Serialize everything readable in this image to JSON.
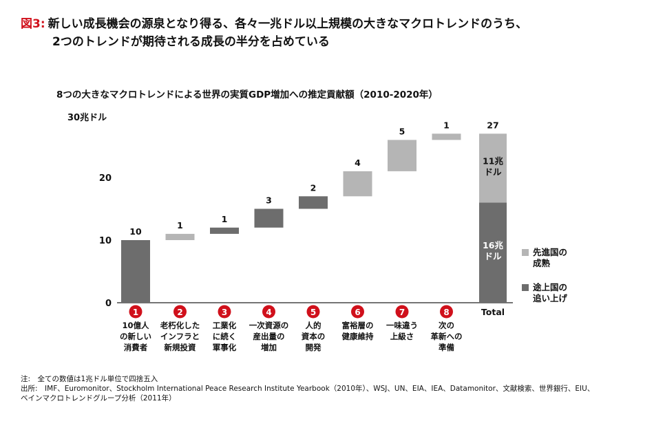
{
  "figure": {
    "number": "図3:",
    "title_line1": "新しい成長機会の源泉となり得る、各々一兆ドル以上規模の大きなマクロトレンドのうち、",
    "title_line2": "2つのトレンドが期待される成長の半分を占めている"
  },
  "colors": {
    "accent": "#d0101b",
    "dark_bar": "#6d6d6d",
    "light_bar": "#b5b5b5"
  },
  "chart_data": {
    "type": "bar",
    "subtype": "waterfall",
    "title": "8つの大きなマクロトレンドによる世界の実質GDP増加への推定貢献額（2010-2020年）",
    "unit_label": "30兆ドル",
    "ylim": [
      0,
      30
    ],
    "yticks": [
      "0",
      "10",
      "20"
    ],
    "categories": [
      {
        "num": "1",
        "lines": [
          "10億人",
          "の新しい",
          "消費者"
        ]
      },
      {
        "num": "2",
        "lines": [
          "老朽化した",
          "インフラと",
          "新規投資"
        ]
      },
      {
        "num": "3",
        "lines": [
          "工業化",
          "に続く",
          "軍事化"
        ]
      },
      {
        "num": "4",
        "lines": [
          "一次資源の",
          "産出量の",
          "増加"
        ]
      },
      {
        "num": "5",
        "lines": [
          "人的",
          "資本の",
          "開発"
        ]
      },
      {
        "num": "6",
        "lines": [
          "富裕層の",
          "健康維持"
        ]
      },
      {
        "num": "7",
        "lines": [
          "一味違う",
          "上級さ"
        ]
      },
      {
        "num": "8",
        "lines": [
          "次の",
          "革新への",
          "準備"
        ]
      }
    ],
    "series": [
      {
        "start": 0,
        "end": 10,
        "label": "10",
        "tone": "dark"
      },
      {
        "start": 10,
        "end": 11,
        "label": "1",
        "tone": "light"
      },
      {
        "start": 11,
        "end": 12,
        "label": "1",
        "tone": "dark"
      },
      {
        "start": 12,
        "end": 15,
        "label": "3",
        "tone": "dark"
      },
      {
        "start": 15,
        "end": 17,
        "label": "2",
        "tone": "dark"
      },
      {
        "start": 17,
        "end": 21,
        "label": "4",
        "tone": "light"
      },
      {
        "start": 21,
        "end": 26,
        "label": "5",
        "tone": "light"
      },
      {
        "start": 26,
        "end": 27,
        "label": "1",
        "tone": "light"
      }
    ],
    "total": {
      "category": "Total",
      "label": "27",
      "segments": [
        {
          "name": "途上国の追い上げ",
          "value": 16,
          "label": [
            "16兆",
            "ドル"
          ],
          "tone": "dark"
        },
        {
          "name": "先進国の成熟",
          "value": 11,
          "label": [
            "11兆",
            "ドル"
          ],
          "tone": "light"
        }
      ]
    },
    "legend": [
      {
        "label": [
          "先進国の",
          "成熟"
        ],
        "tone": "light"
      },
      {
        "label": [
          "途上国の",
          "追い上げ"
        ],
        "tone": "dark"
      }
    ],
    "legend_position": "right"
  },
  "notes": {
    "note": "注:　全ての数値は1兆ドル単位で四捨五入",
    "source_line1": "出所:　IMF、Euromonitor、Stockholm International Peace Research Institute Yearbook（2010年）、WSJ、UN、EIA、IEA、Datamonitor、文献検索、世界銀行、EIU、",
    "source_line2": "ベインマクロトレンドグループ分析（2011年）"
  }
}
